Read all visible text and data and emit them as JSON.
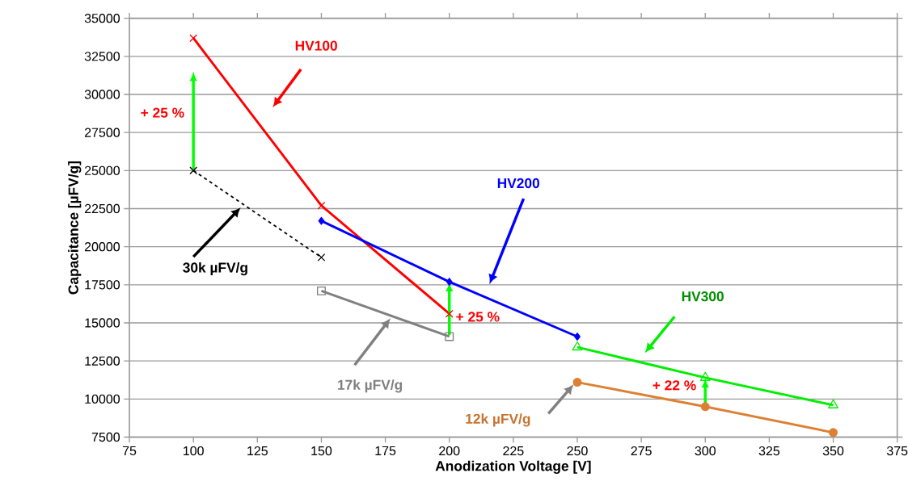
{
  "chart_data": {
    "type": "line",
    "xlabel": "Anodization Voltage [V]",
    "ylabel": "Capacitance [µFV/g]",
    "xlim": [
      75,
      375
    ],
    "xticks": [
      75,
      100,
      125,
      150,
      175,
      200,
      225,
      250,
      275,
      300,
      325,
      350,
      375
    ],
    "ylim": [
      7500,
      35000
    ],
    "yticks": [
      7500,
      10000,
      12500,
      15000,
      17500,
      20000,
      22500,
      25000,
      27500,
      30000,
      32500,
      35000
    ],
    "grid": "y",
    "series": [
      {
        "name": "HV100",
        "color": "#ff0000",
        "x": [
          100,
          150,
          200
        ],
        "values": [
          33700,
          22700,
          15600
        ],
        "marker": "cross",
        "line_style": "solid"
      },
      {
        "name": "HV200",
        "color": "#0000ff",
        "x": [
          150,
          200,
          250
        ],
        "values": [
          21700,
          17700,
          14100
        ],
        "marker": "diamond",
        "line_style": "solid"
      },
      {
        "name": "HV300",
        "color": "#00ee00",
        "x": [
          250,
          300,
          350
        ],
        "values": [
          13400,
          11400,
          9600
        ],
        "marker": "triangle",
        "line_style": "solid"
      },
      {
        "name": "30k µFV/g",
        "color": "#000000",
        "x": [
          100,
          150
        ],
        "values": [
          25000,
          19300
        ],
        "marker": "cross",
        "line_style": "dashed"
      },
      {
        "name": "17k µFV/g",
        "color": "#808080",
        "x": [
          150,
          200
        ],
        "values": [
          17100,
          14100
        ],
        "marker": "square",
        "line_style": "solid"
      },
      {
        "name": "12k µFV/g",
        "color": "#dd8033",
        "x": [
          250,
          300,
          350
        ],
        "values": [
          11100,
          9500,
          7800
        ],
        "marker": "circle",
        "line_style": "solid"
      }
    ],
    "annotations": [
      "+ 25 %",
      "+ 25 %",
      "+ 22 %"
    ]
  }
}
